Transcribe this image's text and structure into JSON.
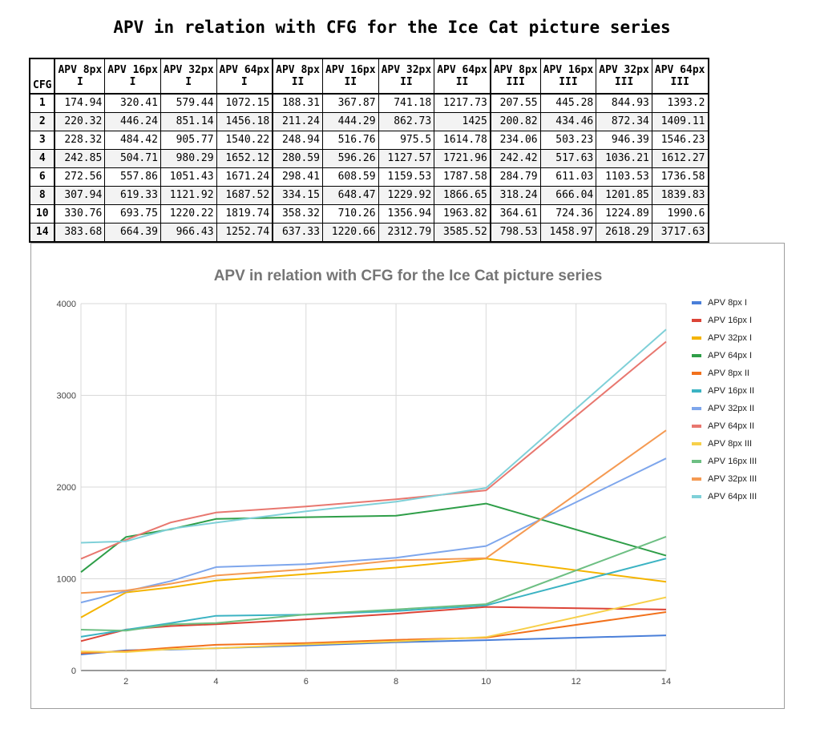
{
  "page_title": "APV in relation with CFG for the Ice Cat picture series",
  "table": {
    "cfg_header": "CFG",
    "columns": [
      {
        "l1": "APV 8px",
        "l2": "I"
      },
      {
        "l1": "APV 16px",
        "l2": "I"
      },
      {
        "l1": "APV 32px",
        "l2": "I"
      },
      {
        "l1": "APV 64px",
        "l2": "I"
      },
      {
        "l1": "APV 8px",
        "l2": "II"
      },
      {
        "l1": "APV 16px",
        "l2": "II"
      },
      {
        "l1": "APV 32px",
        "l2": "II"
      },
      {
        "l1": "APV 64px",
        "l2": "II"
      },
      {
        "l1": "APV 8px",
        "l2": "III"
      },
      {
        "l1": "APV 16px",
        "l2": "III"
      },
      {
        "l1": "APV 32px",
        "l2": "III"
      },
      {
        "l1": "APV 64px",
        "l2": "III"
      }
    ],
    "rows": [
      {
        "cfg": "1",
        "cells": [
          "174.94",
          "320.41",
          "579.44",
          "1072.15",
          "188.31",
          "367.87",
          "741.18",
          "1217.73",
          "207.55",
          "445.28",
          "844.93",
          "1393.2"
        ]
      },
      {
        "cfg": "2",
        "cells": [
          "220.32",
          "446.24",
          "851.14",
          "1456.18",
          "211.24",
          "444.29",
          "862.73",
          "1425",
          "200.82",
          "434.46",
          "872.34",
          "1409.11"
        ]
      },
      {
        "cfg": "3",
        "cells": [
          "228.32",
          "484.42",
          "905.77",
          "1540.22",
          "248.94",
          "516.76",
          "975.5",
          "1614.78",
          "234.06",
          "503.23",
          "946.39",
          "1546.23"
        ]
      },
      {
        "cfg": "4",
        "cells": [
          "242.85",
          "504.71",
          "980.29",
          "1652.12",
          "280.59",
          "596.26",
          "1127.57",
          "1721.96",
          "242.42",
          "517.63",
          "1036.21",
          "1612.27"
        ]
      },
      {
        "cfg": "6",
        "cells": [
          "272.56",
          "557.86",
          "1051.43",
          "1671.24",
          "298.41",
          "608.59",
          "1159.53",
          "1787.58",
          "284.79",
          "611.03",
          "1103.53",
          "1736.58"
        ]
      },
      {
        "cfg": "8",
        "cells": [
          "307.94",
          "619.33",
          "1121.92",
          "1687.52",
          "334.15",
          "648.47",
          "1229.92",
          "1866.65",
          "318.24",
          "666.04",
          "1201.85",
          "1839.83"
        ]
      },
      {
        "cfg": "10",
        "cells": [
          "330.76",
          "693.75",
          "1220.22",
          "1819.74",
          "358.32",
          "710.26",
          "1356.94",
          "1963.82",
          "364.61",
          "724.36",
          "1224.89",
          "1990.6"
        ]
      },
      {
        "cfg": "14",
        "cells": [
          "383.68",
          "664.39",
          "966.43",
          "1252.74",
          "637.33",
          "1220.66",
          "2312.79",
          "3585.52",
          "798.53",
          "1458.97",
          "2618.29",
          "3717.63"
        ]
      }
    ]
  },
  "chart_data": {
    "type": "line",
    "title": "APV in relation with CFG for the Ice Cat picture series",
    "xlabel": "",
    "ylabel": "",
    "x": [
      1,
      2,
      3,
      4,
      6,
      8,
      10,
      14
    ],
    "xlim": [
      1,
      14
    ],
    "ylim": [
      0,
      4000
    ],
    "xticks": [
      2,
      4,
      6,
      8,
      10,
      12,
      14
    ],
    "yticks": [
      0,
      1000,
      2000,
      3000,
      4000
    ],
    "grid": true,
    "legend_position": "right",
    "series": [
      {
        "name": "APV 8px I",
        "color": "#4a7fd9",
        "values": [
          174.94,
          220.32,
          228.32,
          242.85,
          272.56,
          307.94,
          330.76,
          383.68
        ]
      },
      {
        "name": "APV 16px I",
        "color": "#dc4437",
        "values": [
          320.41,
          446.24,
          484.42,
          504.71,
          557.86,
          619.33,
          693.75,
          664.39
        ]
      },
      {
        "name": "APV 32px I",
        "color": "#f4b400",
        "values": [
          579.44,
          851.14,
          905.77,
          980.29,
          1051.43,
          1121.92,
          1220.22,
          966.43
        ]
      },
      {
        "name": "APV 64px I",
        "color": "#2e9e48",
        "values": [
          1072.15,
          1456.18,
          1540.22,
          1652.12,
          1671.24,
          1687.52,
          1819.74,
          1252.74
        ]
      },
      {
        "name": "APV 8px II",
        "color": "#f2711c",
        "values": [
          188.31,
          211.24,
          248.94,
          280.59,
          298.41,
          334.15,
          358.32,
          637.33
        ]
      },
      {
        "name": "APV 16px II",
        "color": "#3bb3c3",
        "values": [
          367.87,
          444.29,
          516.76,
          596.26,
          608.59,
          648.47,
          710.26,
          1220.66
        ]
      },
      {
        "name": "APV 32px II",
        "color": "#7ea6ec",
        "values": [
          741.18,
          862.73,
          975.5,
          1127.57,
          1159.53,
          1229.92,
          1356.94,
          2312.79
        ]
      },
      {
        "name": "APV 64px II",
        "color": "#e8776f",
        "values": [
          1217.73,
          1425,
          1614.78,
          1721.96,
          1787.58,
          1866.65,
          1963.82,
          3585.52
        ]
      },
      {
        "name": "APV 8px III",
        "color": "#f7d04a",
        "values": [
          207.55,
          200.82,
          234.06,
          242.42,
          284.79,
          318.24,
          364.61,
          798.53
        ]
      },
      {
        "name": "APV 16px III",
        "color": "#6dbf83",
        "values": [
          445.28,
          434.46,
          503.23,
          517.63,
          611.03,
          666.04,
          724.36,
          1458.97
        ]
      },
      {
        "name": "APV 32px III",
        "color": "#f59a52",
        "values": [
          844.93,
          872.34,
          946.39,
          1036.21,
          1103.53,
          1201.85,
          1224.89,
          2618.29
        ]
      },
      {
        "name": "APV 64px III",
        "color": "#7fd0d8",
        "values": [
          1393.2,
          1409.11,
          1546.23,
          1612.27,
          1736.58,
          1839.83,
          1990.6,
          3717.63
        ]
      }
    ]
  }
}
